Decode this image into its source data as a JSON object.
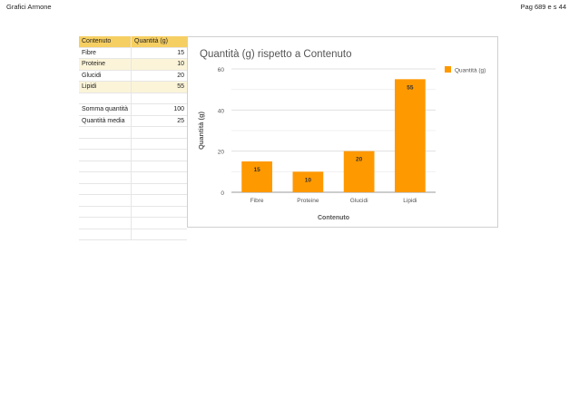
{
  "header": {
    "left": "Grafici Armone",
    "right": "Pag 689 e s 44"
  },
  "table": {
    "headers": [
      "Contenuto",
      "Quantità (g)"
    ],
    "rows": [
      [
        "Fibre",
        "15"
      ],
      [
        "Proteine",
        "10"
      ],
      [
        "Glucidi",
        "20"
      ],
      [
        "Lipidi",
        "55"
      ],
      [
        "",
        ""
      ],
      [
        "Somma quantità",
        "100"
      ],
      [
        "Quantità media",
        "25"
      ]
    ]
  },
  "chart_data": {
    "type": "bar",
    "title": "Quantità (g) rispetto a Contenuto",
    "xlabel": "Contenuto",
    "ylabel": "Quantità (g)",
    "categories": [
      "Fibre",
      "Proteine",
      "Glucidi",
      "Lipidi"
    ],
    "series": [
      {
        "name": "Quantità (g)",
        "values": [
          15,
          10,
          20,
          55
        ],
        "color": "#ff9900"
      }
    ],
    "ylim": [
      0,
      60
    ],
    "yticks": [
      0,
      20,
      40,
      60
    ],
    "data_labels": true,
    "grid": true,
    "legend": "right"
  }
}
